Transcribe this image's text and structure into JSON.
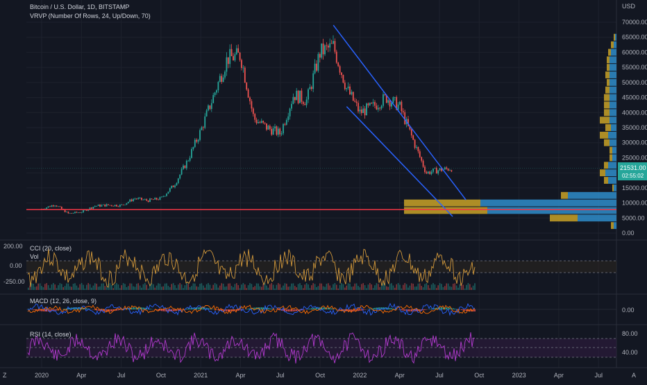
{
  "header": {
    "title": "Bitcoin / U.S. Dollar, 1D, BITSTAMP",
    "vrvp_label": "VRVP (Number Of Rows, 24, Up/Down, 70)"
  },
  "colors": {
    "background": "#131722",
    "up": "#26a69a",
    "down": "#ef5350",
    "channel": "#2962ff",
    "support": "#f23645",
    "vp_up": "#2e86c1",
    "vp_down": "#c9a227",
    "cci": "#d49a3b",
    "rsi": "#b53bd1",
    "macd": "#2962ff",
    "signal": "#ff6d00",
    "price_tag": "#26a69a"
  },
  "price_axis": {
    "currency": "USD",
    "ticks": [
      "70000.00",
      "65000.00",
      "60000.00",
      "55000.00",
      "50000.00",
      "45000.00",
      "40000.00",
      "35000.00",
      "30000.00",
      "25000.00",
      "20000.00",
      "15000.00",
      "10000.00",
      "5000.00",
      "0.00"
    ],
    "current_price": "21531.00",
    "countdown": "02:55:02"
  },
  "time_axis": {
    "labels": [
      "2020",
      "Apr",
      "Jul",
      "Oct",
      "2021",
      "Apr",
      "Jul",
      "Oct",
      "2022",
      "Apr",
      "Jul",
      "Oct",
      "2023",
      "Apr",
      "Jul"
    ]
  },
  "indicators": {
    "cci": {
      "label": "CCI (20, close)",
      "vol_label": "Vol",
      "ticks": [
        "200.00",
        "0.00",
        "-250.00"
      ]
    },
    "macd": {
      "label": "MACD (12, 26, close, 9)",
      "ticks": [
        "0.00"
      ]
    },
    "rsi": {
      "label": "RSI (14, close)",
      "ticks": [
        "80.00",
        "40.00"
      ]
    }
  },
  "toolbar": {
    "zoom_label": "Z",
    "auto_label": "A"
  },
  "chart_data": {
    "type": "line",
    "title": "Bitcoin / U.S. Dollar, 1D, BITSTAMP",
    "ylabel": "USD",
    "ylim": [
      0,
      70000
    ],
    "x": [
      "2020-01",
      "2020-02",
      "2020-03",
      "2020-04",
      "2020-05",
      "2020-06",
      "2020-07",
      "2020-08",
      "2020-09",
      "2020-10",
      "2020-11",
      "2020-12",
      "2021-01",
      "2021-02",
      "2021-03",
      "2021-04",
      "2021-05",
      "2021-06",
      "2021-07",
      "2021-08",
      "2021-09",
      "2021-10",
      "2021-11",
      "2021-12",
      "2022-01",
      "2022-02",
      "2022-03",
      "2022-04",
      "2022-05",
      "2022-06",
      "2022-07",
      "2022-08"
    ],
    "series": [
      {
        "values": [
          8000,
          9500,
          6500,
          7000,
          9000,
          9300,
          9200,
          11500,
          10800,
          11500,
          16000,
          24000,
          34000,
          46000,
          58000,
          59000,
          38000,
          35000,
          33000,
          46000,
          44000,
          60000,
          62000,
          48000,
          40000,
          42000,
          45000,
          42000,
          31000,
          20000,
          21000,
          21500
        ]
      }
    ],
    "volume_profile": {
      "price_levels": [
        2500,
        5000,
        7500,
        10000,
        12500,
        15000,
        17500,
        20000,
        22500,
        25000,
        27500,
        30000,
        32500,
        35000,
        37500,
        40000,
        42500,
        45000,
        47500,
        50000,
        52500,
        55000,
        57500,
        60000,
        62500,
        65000,
        67500
      ],
      "up_volume": [
        0.02,
        0.28,
        0.93,
        0.98,
        0.35,
        0.02,
        0.06,
        0.08,
        0.06,
        0.03,
        0.03,
        0.05,
        0.06,
        0.04,
        0.05,
        0.05,
        0.05,
        0.05,
        0.05,
        0.05,
        0.05,
        0.05,
        0.05,
        0.04,
        0.02,
        0.01,
        0.0
      ],
      "down_volume": [
        0.02,
        0.2,
        0.6,
        0.55,
        0.05,
        0.01,
        0.03,
        0.04,
        0.03,
        0.02,
        0.02,
        0.04,
        0.06,
        0.04,
        0.07,
        0.04,
        0.04,
        0.04,
        0.03,
        0.02,
        0.03,
        0.02,
        0.02,
        0.02,
        0.02,
        0.01,
        0.0
      ]
    },
    "trendlines": [
      {
        "name": "channel-upper",
        "from": [
          "2021-11",
          69000
        ],
        "to": [
          "2022-09",
          11000
        ]
      },
      {
        "name": "channel-lower",
        "from": [
          "2021-12",
          42000
        ],
        "to": [
          "2022-08",
          5500
        ]
      }
    ],
    "support_level": 7800,
    "grid": true
  }
}
